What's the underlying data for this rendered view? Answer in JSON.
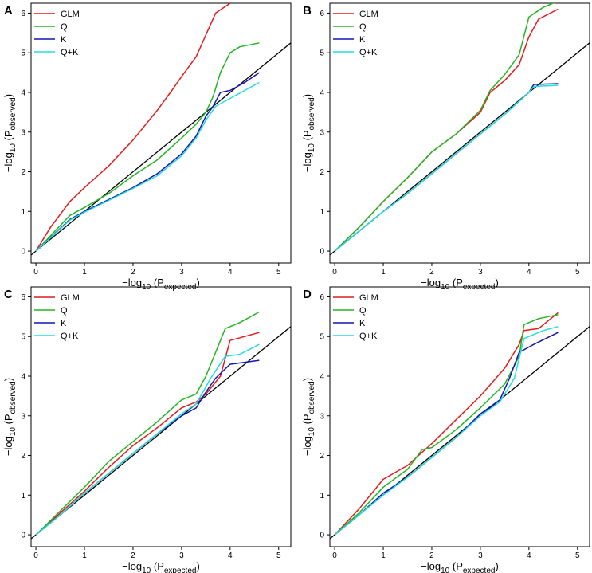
{
  "chart_data": [
    {
      "panel_label": "A",
      "type": "line",
      "title": "",
      "xlabel": {
        "prefix": "−log",
        "base": "10",
        "open": " (P",
        "sub": "expected",
        "close": ")"
      },
      "ylabel": {
        "prefix": "−log",
        "base": "10",
        "open": " (P",
        "sub": "observed",
        "close": ")"
      },
      "xlim": [
        -0.1,
        5.25
      ],
      "ylim": [
        -0.3,
        6.25
      ],
      "x_ticks": [
        "0",
        "1",
        "2",
        "3",
        "4",
        "5"
      ],
      "y_ticks": [
        "0",
        "1",
        "2",
        "3",
        "4",
        "5",
        "6"
      ],
      "reference_line": "y = x",
      "legend": "top-left",
      "series": [
        {
          "name": "GLM",
          "color": "#e41a1c",
          "points": [
            [
              0,
              0
            ],
            [
              0.3,
              0.6
            ],
            [
              0.7,
              1.25
            ],
            [
              1,
              1.6
            ],
            [
              1.5,
              2.15
            ],
            [
              2,
              2.8
            ],
            [
              2.5,
              3.55
            ],
            [
              2.8,
              4.05
            ],
            [
              3,
              4.4
            ],
            [
              3.3,
              4.9
            ],
            [
              3.5,
              5.45
            ],
            [
              3.7,
              6.0
            ],
            [
              4.0,
              6.25
            ]
          ]
        },
        {
          "name": "Q",
          "color": "#22b522",
          "points": [
            [
              0,
              0
            ],
            [
              0.7,
              0.9
            ],
            [
              1,
              1.1
            ],
            [
              1.5,
              1.45
            ],
            [
              2,
              1.9
            ],
            [
              2.5,
              2.3
            ],
            [
              3,
              2.85
            ],
            [
              3.3,
              3.2
            ],
            [
              3.5,
              3.5
            ],
            [
              3.65,
              3.9
            ],
            [
              3.8,
              4.5
            ],
            [
              4,
              5.0
            ],
            [
              4.2,
              5.15
            ],
            [
              4.6,
              5.25
            ]
          ]
        },
        {
          "name": "K",
          "color": "#1515b5",
          "points": [
            [
              0,
              0
            ],
            [
              0.7,
              0.8
            ],
            [
              1,
              1.0
            ],
            [
              1.5,
              1.3
            ],
            [
              2,
              1.6
            ],
            [
              2.5,
              1.95
            ],
            [
              3,
              2.45
            ],
            [
              3.3,
              2.9
            ],
            [
              3.5,
              3.4
            ],
            [
              3.65,
              3.65
            ],
            [
              3.8,
              4.0
            ],
            [
              4,
              4.05
            ],
            [
              4.3,
              4.25
            ],
            [
              4.6,
              4.5
            ]
          ]
        },
        {
          "name": "Q+K",
          "color": "#22dddd",
          "points": [
            [
              0,
              0
            ],
            [
              0.7,
              0.78
            ],
            [
              1,
              0.98
            ],
            [
              1.5,
              1.28
            ],
            [
              2,
              1.58
            ],
            [
              2.5,
              1.9
            ],
            [
              3,
              2.4
            ],
            [
              3.3,
              2.85
            ],
            [
              3.5,
              3.3
            ],
            [
              3.7,
              3.65
            ],
            [
              4,
              3.85
            ],
            [
              4.3,
              4.05
            ],
            [
              4.6,
              4.25
            ]
          ]
        }
      ]
    },
    {
      "panel_label": "B",
      "type": "line",
      "title": "",
      "xlabel": {
        "prefix": "−log",
        "base": "10",
        "open": " (P",
        "sub": "expected",
        "close": ")"
      },
      "ylabel": {
        "prefix": "−log",
        "base": "10",
        "open": " (P",
        "sub": "observed",
        "close": ")"
      },
      "xlim": [
        -0.1,
        5.25
      ],
      "ylim": [
        -0.3,
        6.25
      ],
      "x_ticks": [
        "0",
        "1",
        "2",
        "3",
        "4",
        "5"
      ],
      "y_ticks": [
        "0",
        "1",
        "2",
        "3",
        "4",
        "5",
        "6"
      ],
      "reference_line": "y = x",
      "legend": "top-left",
      "series": [
        {
          "name": "GLM",
          "color": "#e41a1c",
          "points": [
            [
              0,
              0
            ],
            [
              0.5,
              0.6
            ],
            [
              1,
              1.25
            ],
            [
              1.5,
              1.85
            ],
            [
              2,
              2.5
            ],
            [
              2.5,
              2.95
            ],
            [
              3,
              3.5
            ],
            [
              3.2,
              4.0
            ],
            [
              3.5,
              4.3
            ],
            [
              3.8,
              4.7
            ],
            [
              4,
              5.4
            ],
            [
              4.2,
              5.85
            ],
            [
              4.6,
              6.1
            ]
          ]
        },
        {
          "name": "Q",
          "color": "#22b522",
          "points": [
            [
              0,
              0
            ],
            [
              0.5,
              0.6
            ],
            [
              1,
              1.25
            ],
            [
              1.5,
              1.85
            ],
            [
              2,
              2.5
            ],
            [
              2.5,
              2.95
            ],
            [
              3,
              3.55
            ],
            [
              3.2,
              4.05
            ],
            [
              3.5,
              4.45
            ],
            [
              3.8,
              4.95
            ],
            [
              4,
              5.9
            ],
            [
              4.3,
              6.15
            ],
            [
              4.6,
              6.3
            ]
          ]
        },
        {
          "name": "K",
          "color": "#1515b5",
          "points": [
            [
              0,
              0
            ],
            [
              0.5,
              0.5
            ],
            [
              1,
              1.0
            ],
            [
              1.5,
              1.45
            ],
            [
              2,
              1.95
            ],
            [
              2.5,
              2.45
            ],
            [
              3,
              2.95
            ],
            [
              3.5,
              3.45
            ],
            [
              4,
              4.0
            ],
            [
              4.1,
              4.2
            ],
            [
              4.6,
              4.22
            ]
          ]
        },
        {
          "name": "Q+K",
          "color": "#22dddd",
          "points": [
            [
              0,
              0
            ],
            [
              0.5,
              0.5
            ],
            [
              1,
              1.0
            ],
            [
              1.5,
              1.45
            ],
            [
              2,
              1.95
            ],
            [
              2.5,
              2.45
            ],
            [
              3,
              2.95
            ],
            [
              3.5,
              3.45
            ],
            [
              4,
              4.0
            ],
            [
              4.1,
              4.15
            ],
            [
              4.6,
              4.18
            ]
          ]
        }
      ]
    },
    {
      "panel_label": "C",
      "type": "line",
      "title": "",
      "xlabel": {
        "prefix": "−log",
        "base": "10",
        "open": " (P",
        "sub": "expected",
        "close": ")"
      },
      "ylabel": {
        "prefix": "−log",
        "base": "10",
        "open": " (P",
        "sub": "observed",
        "close": ")"
      },
      "xlim": [
        -0.1,
        5.25
      ],
      "ylim": [
        -0.3,
        6.25
      ],
      "x_ticks": [
        "0",
        "1",
        "2",
        "3",
        "4",
        "5"
      ],
      "y_ticks": [
        "0",
        "1",
        "2",
        "3",
        "4",
        "5",
        "6"
      ],
      "reference_line": "y = x",
      "legend": "top-left",
      "series": [
        {
          "name": "GLM",
          "color": "#e41a1c",
          "points": [
            [
              0,
              0
            ],
            [
              0.5,
              0.55
            ],
            [
              1,
              1.1
            ],
            [
              1.5,
              1.7
            ],
            [
              2,
              2.25
            ],
            [
              2.5,
              2.7
            ],
            [
              3,
              3.2
            ],
            [
              3.3,
              3.35
            ],
            [
              3.5,
              3.55
            ],
            [
              3.8,
              4.0
            ],
            [
              4,
              4.9
            ],
            [
              4.3,
              5.0
            ],
            [
              4.6,
              5.1
            ]
          ]
        },
        {
          "name": "Q",
          "color": "#22b522",
          "points": [
            [
              0,
              0
            ],
            [
              0.5,
              0.6
            ],
            [
              1,
              1.2
            ],
            [
              1.5,
              1.85
            ],
            [
              2,
              2.35
            ],
            [
              2.5,
              2.85
            ],
            [
              3,
              3.4
            ],
            [
              3.3,
              3.55
            ],
            [
              3.5,
              4.0
            ],
            [
              3.7,
              4.6
            ],
            [
              3.9,
              5.2
            ],
            [
              4.2,
              5.35
            ],
            [
              4.6,
              5.62
            ]
          ]
        },
        {
          "name": "K",
          "color": "#1515b5",
          "points": [
            [
              0,
              0
            ],
            [
              0.5,
              0.5
            ],
            [
              1,
              1.05
            ],
            [
              1.5,
              1.55
            ],
            [
              2,
              2.05
            ],
            [
              2.5,
              2.55
            ],
            [
              3,
              3.0
            ],
            [
              3.3,
              3.2
            ],
            [
              3.5,
              3.6
            ],
            [
              3.7,
              3.95
            ],
            [
              4,
              4.3
            ],
            [
              4.6,
              4.4
            ]
          ]
        },
        {
          "name": "Q+K",
          "color": "#22dddd",
          "points": [
            [
              0,
              0
            ],
            [
              0.5,
              0.5
            ],
            [
              1,
              1.05
            ],
            [
              1.5,
              1.55
            ],
            [
              2,
              2.05
            ],
            [
              2.5,
              2.55
            ],
            [
              3,
              3.05
            ],
            [
              3.3,
              3.3
            ],
            [
              3.6,
              3.95
            ],
            [
              3.9,
              4.5
            ],
            [
              4.2,
              4.55
            ],
            [
              4.6,
              4.8
            ]
          ]
        }
      ]
    },
    {
      "panel_label": "D",
      "type": "line",
      "title": "",
      "xlabel": {
        "prefix": "−log",
        "base": "10",
        "open": " (P",
        "sub": "expected",
        "close": ")"
      },
      "ylabel": {
        "prefix": "−log",
        "base": "10",
        "open": " (P",
        "sub": "observed",
        "close": ")"
      },
      "xlim": [
        -0.1,
        5.25
      ],
      "ylim": [
        -0.3,
        6.25
      ],
      "x_ticks": [
        "0",
        "1",
        "2",
        "3",
        "4",
        "5"
      ],
      "y_ticks": [
        "0",
        "1",
        "2",
        "3",
        "4",
        "5",
        "6"
      ],
      "reference_line": "y = x",
      "legend": "top-left",
      "series": [
        {
          "name": "GLM",
          "color": "#e41a1c",
          "points": [
            [
              0,
              0
            ],
            [
              0.5,
              0.65
            ],
            [
              1,
              1.4
            ],
            [
              1.5,
              1.75
            ],
            [
              2,
              2.3
            ],
            [
              2.5,
              2.9
            ],
            [
              3,
              3.5
            ],
            [
              3.5,
              4.2
            ],
            [
              3.8,
              4.8
            ],
            [
              3.9,
              5.15
            ],
            [
              4.2,
              5.2
            ],
            [
              4.6,
              5.6
            ]
          ]
        },
        {
          "name": "Q",
          "color": "#22b522",
          "points": [
            [
              0,
              0
            ],
            [
              0.5,
              0.55
            ],
            [
              1,
              1.2
            ],
            [
              1.5,
              1.65
            ],
            [
              1.8,
              2.15
            ],
            [
              2,
              2.2
            ],
            [
              2.5,
              2.65
            ],
            [
              3,
              3.2
            ],
            [
              3.5,
              3.8
            ],
            [
              3.8,
              4.5
            ],
            [
              3.9,
              5.3
            ],
            [
              4.2,
              5.45
            ],
            [
              4.6,
              5.55
            ]
          ]
        },
        {
          "name": "K",
          "color": "#1515b5",
          "points": [
            [
              0,
              0
            ],
            [
              0.5,
              0.5
            ],
            [
              1,
              1.05
            ],
            [
              1.5,
              1.45
            ],
            [
              2,
              1.95
            ],
            [
              2.5,
              2.45
            ],
            [
              3,
              3.05
            ],
            [
              3.4,
              3.4
            ],
            [
              3.6,
              3.95
            ],
            [
              3.8,
              4.6
            ],
            [
              4.1,
              4.8
            ],
            [
              4.6,
              5.1
            ]
          ]
        },
        {
          "name": "Q+K",
          "color": "#22dddd",
          "points": [
            [
              0,
              0
            ],
            [
              0.5,
              0.5
            ],
            [
              1,
              1.0
            ],
            [
              1.5,
              1.45
            ],
            [
              2,
              1.95
            ],
            [
              2.5,
              2.45
            ],
            [
              3,
              3.0
            ],
            [
              3.4,
              3.35
            ],
            [
              3.7,
              3.95
            ],
            [
              3.9,
              4.95
            ],
            [
              4.3,
              5.15
            ],
            [
              4.6,
              5.25
            ]
          ]
        }
      ]
    }
  ]
}
